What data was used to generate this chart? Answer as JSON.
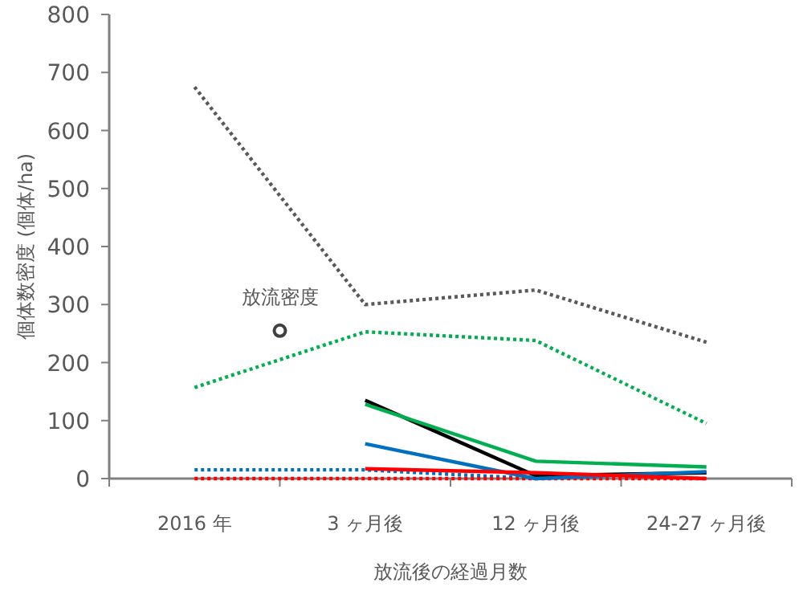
{
  "chart_data": {
    "type": "line",
    "xlabel": "放流後の経過月数",
    "ylabel": "個体数密度 (個体/ha)",
    "categories": [
      "2016 年",
      "3 ヶ月後",
      "12 ヶ月後",
      "24-27 ヶ月後"
    ],
    "ylim": [
      0,
      800
    ],
    "yticks": [
      0,
      100,
      200,
      300,
      400,
      500,
      600,
      700,
      800
    ],
    "grid": false,
    "marker": "none",
    "annotations": [
      {
        "text": "放流密度",
        "y": 255
      }
    ],
    "series": [
      {
        "color": "#595959",
        "line_style": "dotted",
        "values": [
          675,
          300,
          325,
          235
        ]
      },
      {
        "color": "#00b050",
        "line_style": "dotted",
        "values": [
          157,
          253,
          238,
          95
        ]
      },
      {
        "color": "#0070c0",
        "line_style": "dotted",
        "values": [
          15,
          15,
          0,
          null
        ]
      },
      {
        "color": "#ff0000",
        "line_style": "dotted",
        "values": [
          0,
          0,
          0,
          0
        ]
      },
      {
        "color": "#000000",
        "line_style": "solid",
        "values": [
          null,
          135,
          5,
          10
        ]
      },
      {
        "color": "#00b050",
        "line_style": "solid",
        "values": [
          null,
          128,
          30,
          20
        ]
      },
      {
        "color": "#0070c0",
        "line_style": "solid",
        "values": [
          null,
          60,
          0,
          12
        ]
      },
      {
        "color": "#ff0000",
        "line_style": "solid",
        "values": [
          null,
          17,
          10,
          0
        ]
      }
    ]
  }
}
